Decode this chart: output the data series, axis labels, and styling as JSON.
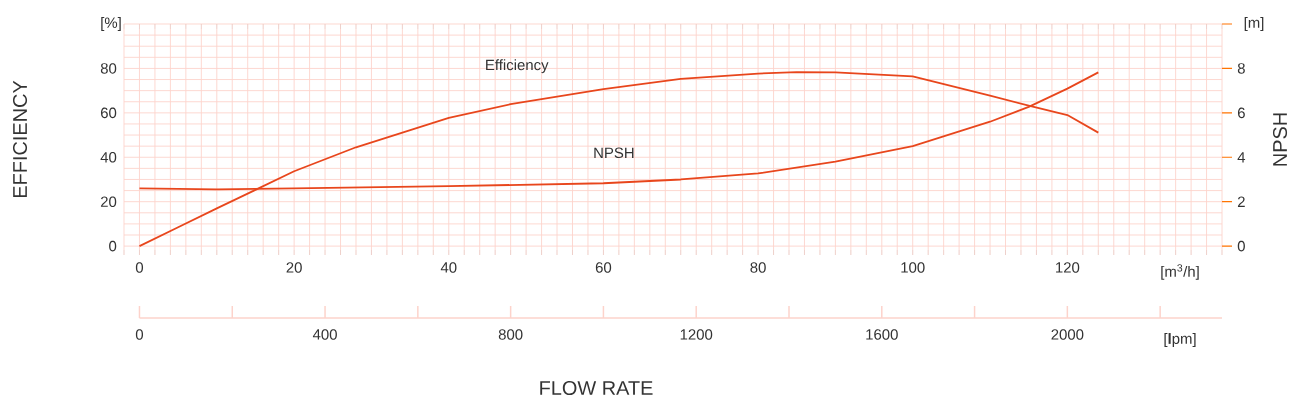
{
  "chart_data": {
    "type": "line",
    "xlabel": "FLOW RATE",
    "ylabel": "EFFICIENCY",
    "y2label": "NPSH",
    "annotations": [
      "[%]",
      "[m]",
      "[m$^{3}$/h]",
      "[**l**pm]"
    ],
    "xlim": [
      -2,
      140
    ],
    "ylim": [
      -4,
      100
    ],
    "y2lim": [
      -0.4,
      10
    ],
    "x2lim": [
      0,
      2333.33
    ],
    "xticks": [
      0,
      20,
      40,
      60,
      80,
      100,
      120
    ],
    "yticks": [
      0,
      20,
      40,
      60,
      80
    ],
    "y2ticks": [
      0,
      2,
      4,
      6,
      8,
      {
        "value": 10,
        "label": null
      }
    ],
    "x2ticks": [
      0,
      {
        "value": 200,
        "label": null
      },
      400,
      {
        "value": 600,
        "label": null
      },
      800,
      {
        "value": 1000,
        "label": null
      },
      1200,
      {
        "value": 1400,
        "label": null
      },
      1600,
      {
        "value": 1800,
        "label": null
      },
      2000,
      {
        "value": 2200,
        "label": null
      }
    ],
    "grid": true,
    "series": [
      {
        "name": "Efficiency",
        "color": "#e8461c",
        "x": [
          0,
          5,
          10,
          14.8,
          20,
          28,
          40,
          48,
          60,
          70,
          80,
          85,
          90,
          100,
          110,
          115,
          120,
          124
        ],
        "values": [
          0,
          8.5,
          17,
          25,
          33.7,
          44.5,
          57.7,
          63.9,
          70.7,
          75.3,
          77.7,
          78.3,
          78.2,
          76.4,
          67.7,
          63.3,
          59,
          51.1
        ]
      },
      {
        "name": "NPSH",
        "color": "#e8461c",
        "axis": "y2",
        "x": [
          0,
          10,
          20,
          40,
          60,
          70,
          80,
          90,
          100,
          110,
          115,
          120,
          124
        ],
        "values": [
          2.6,
          2.55,
          2.6,
          2.7,
          2.83,
          3.0,
          3.27,
          3.8,
          4.5,
          5.6,
          6.27,
          7.09,
          7.82
        ]
      }
    ]
  }
}
